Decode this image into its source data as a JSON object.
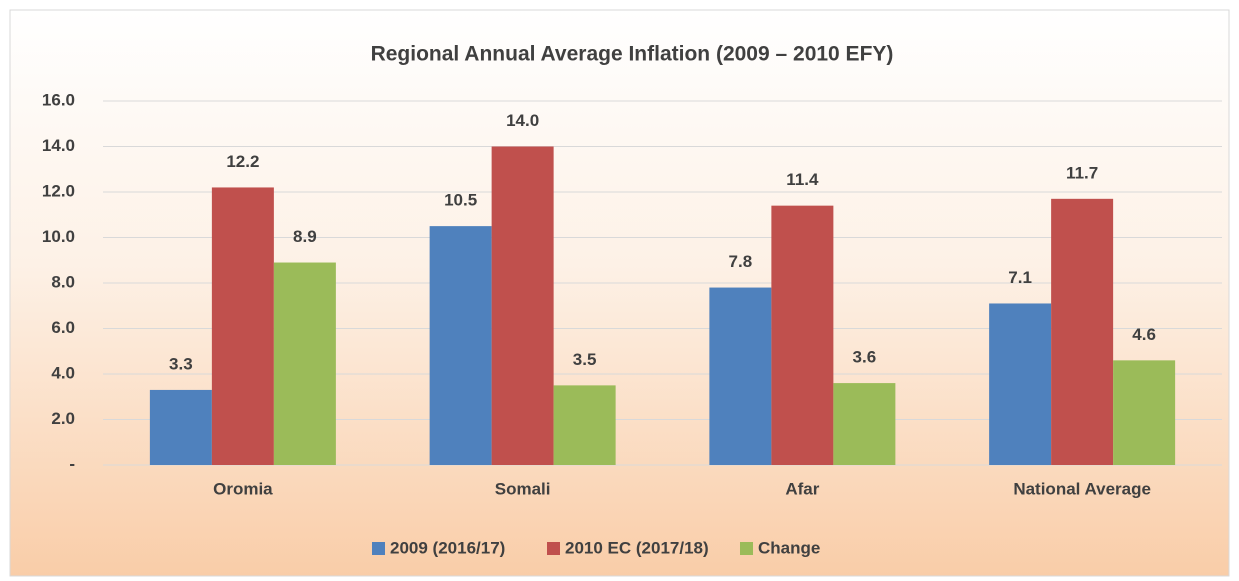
{
  "chart_data": {
    "type": "bar",
    "title": "Regional Annual Average Inflation (2009 – 2010 EFY)",
    "categories": [
      "Oromia",
      "Somali",
      "Afar",
      "National Average"
    ],
    "series": [
      {
        "name": "2009 (2016/17)",
        "color": "#4f81bd",
        "values": [
          3.3,
          10.5,
          7.8,
          7.1
        ],
        "value_labels": [
          "3.3",
          "10.5",
          "7.8",
          "7.1"
        ]
      },
      {
        "name": "2010 EC (2017/18)",
        "color": "#c0504d",
        "values": [
          12.2,
          14.0,
          11.4,
          11.7
        ],
        "value_labels": [
          "12.2",
          "14.0",
          "11.4",
          "11.7"
        ]
      },
      {
        "name": "Change",
        "color": "#9bbb59",
        "values": [
          8.9,
          3.5,
          3.6,
          4.6
        ],
        "value_labels": [
          "8.9",
          "3.5",
          "3.6",
          "4.6"
        ]
      }
    ],
    "ylim": [
      0,
      16
    ],
    "yticks": [
      {
        "value": 0,
        "label": "-"
      },
      {
        "value": 2,
        "label": "2.0"
      },
      {
        "value": 4,
        "label": "4.0"
      },
      {
        "value": 6,
        "label": "6.0"
      },
      {
        "value": 8,
        "label": "8.0"
      },
      {
        "value": 10,
        "label": "10.0"
      },
      {
        "value": 12,
        "label": "12.0"
      },
      {
        "value": 14,
        "label": "14.0"
      },
      {
        "value": 16,
        "label": "16.0"
      }
    ],
    "grid": true,
    "legend": "bottom"
  }
}
